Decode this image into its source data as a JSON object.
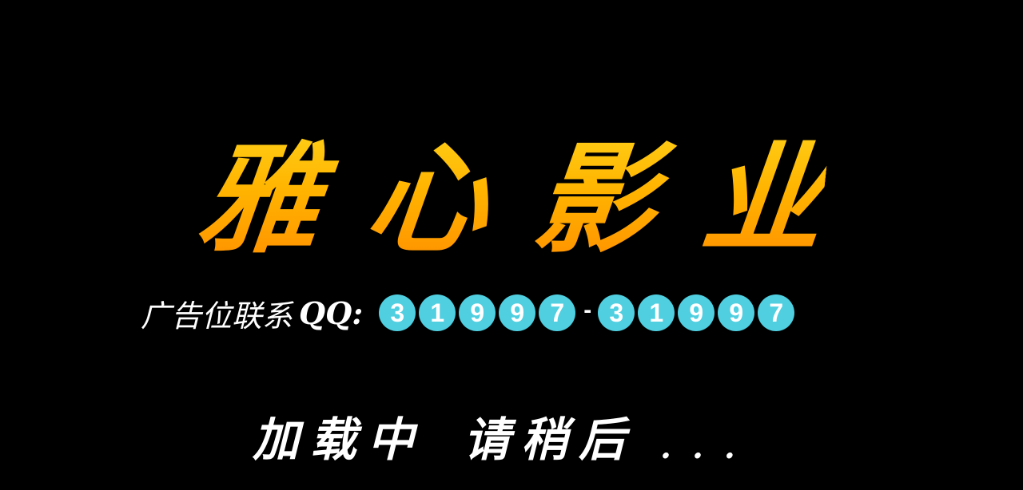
{
  "brand": {
    "title_chars": [
      "雅",
      "心",
      "影",
      "业"
    ]
  },
  "contact": {
    "label": "广告位联系",
    "qq_label": "QQ:",
    "qq_group_1": [
      "3",
      "1",
      "9",
      "9",
      "7"
    ],
    "separator": "-",
    "qq_group_2": [
      "3",
      "1",
      "9",
      "9",
      "7"
    ]
  },
  "loading": {
    "main": "加载中",
    "wait": "请稍后",
    "dots": "..."
  },
  "colors": {
    "background": "#000000",
    "title_top": "#ffd21a",
    "title_bottom": "#ff8a00",
    "digit_badge": "#4fcfe0",
    "text": "#ffffff"
  }
}
